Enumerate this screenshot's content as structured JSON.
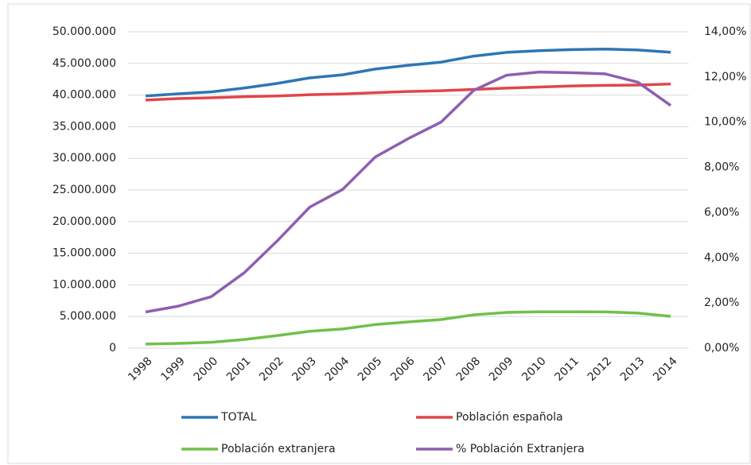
{
  "chart_data": {
    "type": "line",
    "categories": [
      "1998",
      "1999",
      "2000",
      "2001",
      "2002",
      "2003",
      "2004",
      "2005",
      "2006",
      "2007",
      "2008",
      "2009",
      "2010",
      "2011",
      "2012",
      "2013",
      "2014"
    ],
    "series": [
      {
        "name": "TOTAL",
        "color": "#2e75b6",
        "values": [
          39852651,
          40202160,
          40499791,
          41116842,
          41837894,
          42717064,
          43197684,
          44108530,
          44708964,
          45200737,
          46157822,
          46745807,
          47021031,
          47190493,
          47265321,
          47129783,
          46771341
        ]
      },
      {
        "name": "Población española",
        "color": "#e0464b",
        "values": [
          39215566,
          39453206,
          39575912,
          39746185,
          39859948,
          40052896,
          40163358,
          40377920,
          40564798,
          40681183,
          40889060,
          41097136,
          41273297,
          41439006,
          41529063,
          41583545,
          41747854
        ]
      },
      {
        "name": "Población extranjera",
        "color": "#70c04a",
        "values": [
          637085,
          748954,
          923879,
          1370657,
          1977946,
          2664168,
          3034326,
          3730610,
          4144166,
          4519554,
          5268762,
          5648671,
          5747734,
          5751487,
          5736258,
          5546238,
          5023487
        ]
      },
      {
        "name": "% Población Extranjera",
        "color": "#8e5fb0",
        "axis": "y2",
        "values": [
          1.6,
          1.86,
          2.28,
          3.33,
          4.73,
          6.24,
          7.02,
          8.46,
          9.27,
          10.0,
          11.41,
          12.08,
          12.22,
          12.19,
          12.14,
          11.77,
          10.74
        ]
      }
    ],
    "ylim": [
      0,
      50000000
    ],
    "yticks": [
      0,
      {
        "value": 5000000,
        "label": "5.000.000"
      },
      {
        "value": 10000000,
        "label": "10.000.000"
      },
      {
        "value": 15000000,
        "label": "15.000.000"
      },
      {
        "value": 20000000,
        "label": "20.000.000"
      },
      {
        "value": 25000000,
        "label": "25.000.000"
      },
      {
        "value": 30000000,
        "label": "30.000.000"
      },
      {
        "value": 35000000,
        "label": "35.000.000"
      },
      {
        "value": 40000000,
        "label": "40.000.000"
      },
      {
        "value": 45000000,
        "label": "45.000.000"
      },
      {
        "value": 50000000,
        "label": "50.000.000"
      }
    ],
    "y2lim": [
      0,
      14
    ],
    "y2ticks": [
      {
        "value": 0,
        "label": "0,00%"
      },
      {
        "value": 2,
        "label": "2,00%"
      },
      {
        "value": 4,
        "label": "4,00%"
      },
      {
        "value": 6,
        "label": "6,00%"
      },
      {
        "value": 8,
        "label": "8,00%"
      },
      {
        "value": 10,
        "label": "10,00%"
      },
      {
        "value": 12,
        "label": "12,00%"
      },
      {
        "value": 14,
        "label": "14,00%"
      }
    ],
    "grid": true,
    "legend": "bottom"
  }
}
